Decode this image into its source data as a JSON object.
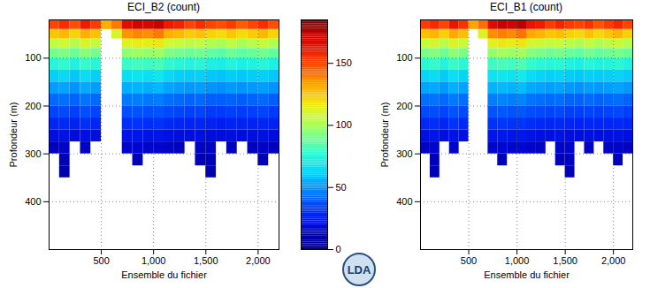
{
  "chart_data": [
    {
      "type": "heatmap",
      "title": "ECI_B2 (count)",
      "x_label": "Ensemble du fichier",
      "y_label": "Profondeur (m)",
      "xlim": [
        0,
        2200
      ],
      "xticks": [
        500,
        1000,
        1500,
        2000
      ],
      "ylim": [
        20,
        500
      ],
      "yticks": [
        100,
        200,
        300,
        400
      ],
      "grid": true,
      "ensemble_bins": [
        0,
        100,
        200,
        300,
        400,
        500,
        600,
        700,
        800,
        900,
        1000,
        1100,
        1200,
        1300,
        1400,
        1500,
        1600,
        1700,
        1800,
        1900,
        2000,
        2100,
        2200
      ],
      "depth_bins": [
        20,
        40,
        60,
        80,
        100,
        125,
        150,
        175,
        200,
        225,
        250,
        275,
        300,
        325,
        350,
        400,
        450,
        500
      ],
      "cells": [
        [
          150,
          155,
          148,
          160,
          152,
          130,
          140,
          165,
          170,
          168,
          172,
          160,
          158,
          150,
          155,
          150,
          148,
          152,
          145,
          150,
          155,
          148
        ],
        [
          125,
          128,
          122,
          130,
          126,
          null,
          110,
          135,
          138,
          136,
          140,
          130,
          128,
          124,
          126,
          122,
          120,
          125,
          120,
          124,
          128,
          122
        ],
        [
          105,
          108,
          102,
          110,
          106,
          null,
          null,
          112,
          115,
          114,
          116,
          108,
          106,
          104,
          105,
          102,
          100,
          104,
          100,
          103,
          106,
          102
        ],
        [
          90,
          92,
          88,
          94,
          90,
          null,
          null,
          95,
          98,
          96,
          98,
          92,
          90,
          88,
          90,
          87,
          85,
          89,
          86,
          88,
          90,
          87
        ],
        [
          75,
          77,
          73,
          78,
          75,
          null,
          null,
          79,
          81,
          80,
          82,
          77,
          75,
          74,
          75,
          72,
          71,
          74,
          72,
          73,
          75,
          72
        ],
        [
          62,
          64,
          60,
          65,
          62,
          null,
          null,
          66,
          67,
          66,
          68,
          64,
          62,
          61,
          62,
          60,
          59,
          61,
          60,
          61,
          62,
          60
        ],
        [
          52,
          53,
          50,
          54,
          52,
          null,
          null,
          55,
          56,
          55,
          57,
          53,
          52,
          51,
          52,
          50,
          49,
          51,
          50,
          51,
          52,
          50
        ],
        [
          42,
          43,
          41,
          44,
          42,
          null,
          null,
          45,
          46,
          45,
          46,
          43,
          42,
          41,
          42,
          40,
          40,
          41,
          40,
          41,
          42,
          40
        ],
        [
          35,
          36,
          34,
          37,
          35,
          null,
          null,
          37,
          38,
          37,
          38,
          36,
          35,
          34,
          35,
          33,
          33,
          34,
          33,
          34,
          35,
          33
        ],
        [
          28,
          29,
          27,
          30,
          28,
          null,
          null,
          30,
          31,
          30,
          31,
          29,
          28,
          27,
          28,
          27,
          26,
          27,
          27,
          27,
          28,
          27
        ],
        [
          20,
          22,
          19,
          21,
          20,
          null,
          null,
          22,
          23,
          22,
          23,
          21,
          20,
          20,
          21,
          19,
          19,
          20,
          19,
          20,
          21,
          19
        ],
        [
          12,
          14,
          null,
          13,
          null,
          null,
          null,
          14,
          15,
          14,
          15,
          13,
          12,
          null,
          13,
          14,
          null,
          12,
          null,
          12,
          13,
          12
        ],
        [
          null,
          10,
          null,
          null,
          null,
          null,
          null,
          null,
          10,
          null,
          null,
          null,
          null,
          null,
          10,
          11,
          null,
          null,
          null,
          null,
          10,
          null
        ],
        [
          null,
          9,
          null,
          null,
          null,
          null,
          null,
          null,
          null,
          null,
          null,
          null,
          null,
          null,
          null,
          9,
          null,
          null,
          null,
          null,
          null,
          null
        ],
        [
          null,
          null,
          null,
          null,
          null,
          null,
          null,
          null,
          null,
          null,
          null,
          null,
          null,
          null,
          null,
          null,
          null,
          null,
          null,
          null,
          null,
          null
        ],
        [
          null,
          null,
          null,
          null,
          null,
          null,
          null,
          null,
          null,
          null,
          null,
          null,
          null,
          null,
          null,
          null,
          null,
          null,
          null,
          null,
          null,
          null
        ],
        [
          null,
          null,
          null,
          null,
          null,
          null,
          null,
          null,
          null,
          null,
          null,
          null,
          null,
          null,
          null,
          null,
          null,
          null,
          null,
          null,
          null,
          null
        ]
      ]
    },
    {
      "type": "heatmap",
      "title": "ECI_B1 (count)",
      "x_label": "Ensemble du fichier",
      "y_label": "Profondeur (m)",
      "xlim": [
        0,
        2200
      ],
      "xticks": [
        500,
        1000,
        1500,
        2000
      ],
      "ylim": [
        20,
        500
      ],
      "yticks": [
        100,
        200,
        300,
        400
      ],
      "grid": true,
      "ensemble_bins": [
        0,
        100,
        200,
        300,
        400,
        500,
        600,
        700,
        800,
        900,
        1000,
        1100,
        1200,
        1300,
        1400,
        1500,
        1600,
        1700,
        1800,
        1900,
        2000,
        2100,
        2200
      ],
      "depth_bins": [
        20,
        40,
        60,
        80,
        100,
        125,
        150,
        175,
        200,
        225,
        250,
        275,
        300,
        325,
        350,
        400,
        450,
        500
      ],
      "cells": [
        [
          152,
          156,
          150,
          162,
          154,
          132,
          142,
          166,
          172,
          170,
          174,
          162,
          160,
          152,
          157,
          152,
          150,
          154,
          147,
          152,
          157,
          150
        ],
        [
          126,
          129,
          123,
          131,
          127,
          null,
          112,
          136,
          139,
          137,
          141,
          131,
          129,
          125,
          127,
          123,
          121,
          126,
          121,
          125,
          129,
          123
        ],
        [
          106,
          109,
          103,
          111,
          107,
          null,
          null,
          113,
          116,
          115,
          117,
          109,
          107,
          105,
          106,
          103,
          101,
          105,
          101,
          104,
          107,
          103
        ],
        [
          91,
          93,
          89,
          95,
          91,
          null,
          null,
          96,
          99,
          97,
          99,
          93,
          91,
          89,
          91,
          88,
          86,
          90,
          87,
          89,
          91,
          88
        ],
        [
          76,
          78,
          74,
          79,
          76,
          null,
          null,
          80,
          82,
          81,
          83,
          78,
          76,
          75,
          76,
          73,
          72,
          75,
          73,
          74,
          76,
          73
        ],
        [
          63,
          65,
          61,
          66,
          63,
          null,
          null,
          67,
          68,
          67,
          69,
          65,
          63,
          62,
          63,
          61,
          60,
          62,
          61,
          62,
          63,
          61
        ],
        [
          53,
          54,
          51,
          55,
          53,
          null,
          null,
          56,
          57,
          56,
          58,
          54,
          53,
          52,
          53,
          51,
          50,
          52,
          51,
          52,
          53,
          51
        ],
        [
          43,
          44,
          42,
          45,
          43,
          null,
          null,
          46,
          47,
          46,
          47,
          44,
          43,
          42,
          43,
          41,
          41,
          42,
          41,
          42,
          43,
          41
        ],
        [
          36,
          37,
          35,
          38,
          36,
          null,
          null,
          38,
          39,
          38,
          39,
          37,
          36,
          35,
          36,
          34,
          34,
          35,
          34,
          35,
          36,
          34
        ],
        [
          29,
          30,
          28,
          31,
          29,
          null,
          null,
          31,
          32,
          31,
          32,
          30,
          29,
          28,
          29,
          28,
          27,
          28,
          28,
          28,
          29,
          28
        ],
        [
          21,
          23,
          20,
          22,
          21,
          null,
          null,
          23,
          24,
          23,
          24,
          22,
          21,
          21,
          22,
          20,
          20,
          21,
          20,
          21,
          22,
          20
        ],
        [
          13,
          15,
          null,
          14,
          null,
          null,
          null,
          15,
          16,
          15,
          16,
          14,
          13,
          null,
          14,
          15,
          null,
          13,
          null,
          13,
          14,
          13
        ],
        [
          null,
          11,
          null,
          null,
          null,
          null,
          null,
          null,
          11,
          null,
          null,
          null,
          null,
          null,
          11,
          12,
          null,
          null,
          null,
          null,
          11,
          null
        ],
        [
          null,
          10,
          null,
          null,
          null,
          null,
          null,
          null,
          null,
          null,
          null,
          null,
          null,
          null,
          null,
          10,
          null,
          null,
          null,
          null,
          null,
          null
        ],
        [
          null,
          null,
          null,
          null,
          null,
          null,
          null,
          null,
          null,
          null,
          null,
          null,
          null,
          null,
          null,
          null,
          null,
          null,
          null,
          null,
          null,
          null
        ],
        [
          null,
          null,
          null,
          null,
          null,
          null,
          null,
          null,
          null,
          null,
          null,
          null,
          null,
          null,
          null,
          null,
          null,
          null,
          null,
          null,
          null,
          null
        ],
        [
          null,
          null,
          null,
          null,
          null,
          null,
          null,
          null,
          null,
          null,
          null,
          null,
          null,
          null,
          null,
          null,
          null,
          null,
          null,
          null,
          null,
          null
        ]
      ]
    }
  ],
  "colorbar": {
    "range": [
      0,
      185
    ],
    "ticks": [
      0,
      50,
      100,
      150
    ]
  },
  "logo_text": "LDA"
}
